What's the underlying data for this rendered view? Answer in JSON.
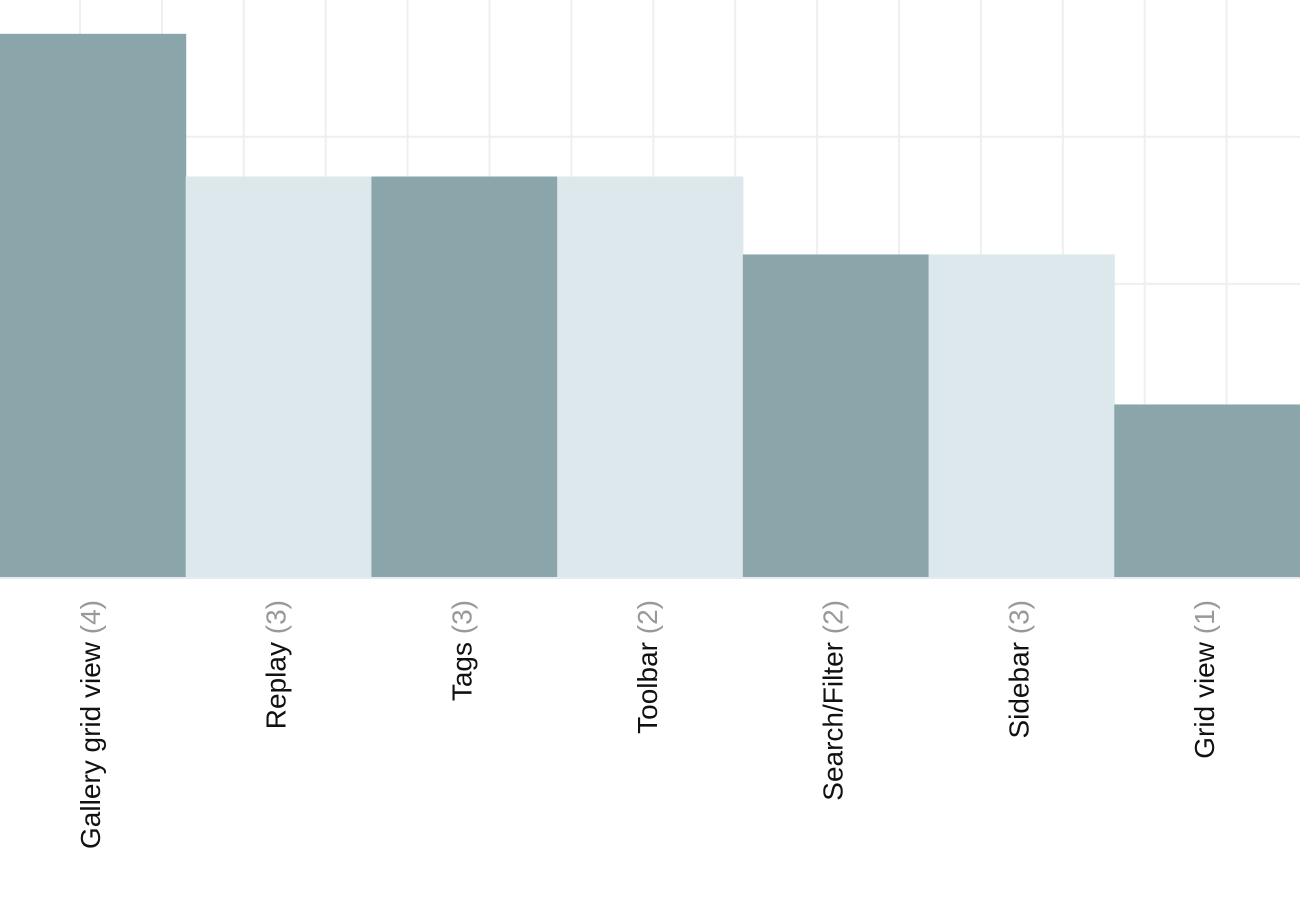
{
  "chart_data": {
    "type": "bar",
    "categories": [
      "Gallery grid view",
      "Replay",
      "Tags",
      "Toolbar",
      "Search/Filter",
      "Sidebar",
      "Grid view"
    ],
    "category_counts": [
      "(4)",
      "(3)",
      "(3)",
      "(2)",
      "(2)",
      "(3)",
      "(1)"
    ],
    "values": [
      3.7,
      2.73,
      2.73,
      2.73,
      2.2,
      2.2,
      1.18
    ],
    "colors": [
      "#8aa6ab",
      "#dce8ec"
    ],
    "ylim": [
      0,
      3.93
    ],
    "yticks": [
      1,
      2,
      3
    ],
    "grid": true
  }
}
